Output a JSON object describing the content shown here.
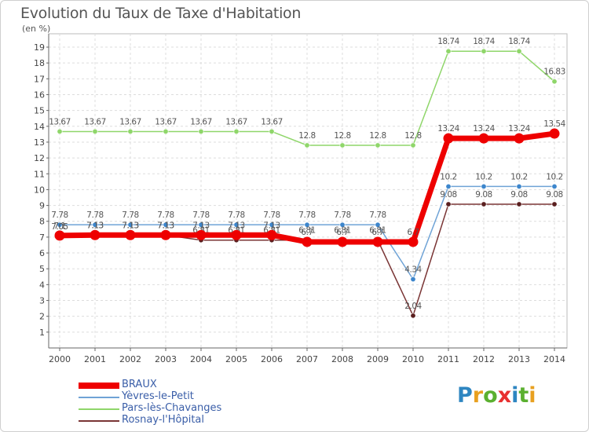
{
  "header": {
    "title": "Evolution du Taux de Taxe d'Habitation",
    "unit": "(en %)"
  },
  "logo": {
    "letters": [
      "P",
      "r",
      "o",
      "x",
      "i",
      "t",
      "i"
    ],
    "colors": [
      "#2e86c1",
      "#e8a020",
      "#5bb030",
      "#e83030",
      "#2e86c1",
      "#5bb030",
      "#e8a020"
    ]
  },
  "chart_data": {
    "type": "line",
    "title": "Evolution du Taux de Taxe d'Habitation",
    "ylabel": "(en %)",
    "xlabel": "",
    "x": [
      "2000",
      "2001",
      "2002",
      "2003",
      "2004",
      "2005",
      "2006",
      "2007",
      "2008",
      "2009",
      "2010",
      "2011",
      "2012",
      "2013",
      "2014"
    ],
    "ylim": [
      0,
      19
    ],
    "yticks": [
      1,
      2,
      3,
      4,
      5,
      6,
      7,
      8,
      9,
      10,
      11,
      12,
      13,
      14,
      15,
      16,
      17,
      18,
      19
    ],
    "grid": true,
    "legend_position": "bottom-left",
    "series": [
      {
        "name": "Pars-lès-Chavanges",
        "color": "#8fd66a",
        "marker": "#8fd66a",
        "width": 1.5,
        "values": [
          13.67,
          13.67,
          13.67,
          13.67,
          13.67,
          13.67,
          13.67,
          12.8,
          12.8,
          12.8,
          12.8,
          18.74,
          18.74,
          18.74,
          16.83
        ],
        "labels": [
          "13.67",
          "13.67",
          "13.67",
          "13.67",
          "13.67",
          "13.67",
          "13.67",
          "12.8",
          "12.8",
          "12.8",
          "12.8",
          "18.74",
          "18.74",
          "18.74",
          "16.83"
        ]
      },
      {
        "name": "Yèvres-le-Petit",
        "color": "#6fa3d6",
        "marker": "#3d86cc",
        "width": 1.5,
        "values": [
          7.78,
          7.78,
          7.78,
          7.78,
          7.78,
          7.78,
          7.78,
          7.78,
          7.78,
          7.78,
          4.34,
          10.2,
          10.2,
          10.2,
          10.2
        ],
        "labels": [
          "7.78",
          "7.78",
          "7.78",
          "7.78",
          "7.78",
          "7.78",
          "7.78",
          "7.78",
          "7.78",
          "7.78",
          "4.34",
          "10.2",
          "10.2",
          "10.2",
          "10.2"
        ]
      },
      {
        "name": "Rosnay-l'Hôpital",
        "color": "#7a3535",
        "marker": "#5a1f1f",
        "width": 1.5,
        "values": [
          7.05,
          7.13,
          7.13,
          7.13,
          6.81,
          6.81,
          6.81,
          6.81,
          6.81,
          6.81,
          2.04,
          9.08,
          9.08,
          9.08,
          9.08
        ],
        "labels": [
          "7.05",
          "7.13",
          "7.13",
          "7.13",
          "6.81",
          "6.81",
          "6.81",
          "6.81",
          "6.81",
          "6.81",
          "2.04",
          "9.08",
          "9.08",
          "9.08",
          "9.08"
        ]
      },
      {
        "name": "BRAUX",
        "color": "#ee0000",
        "marker": "#ee0000",
        "width": 7,
        "values": [
          7.1,
          7.13,
          7.13,
          7.13,
          7.13,
          7.13,
          7.13,
          6.7,
          6.7,
          6.7,
          6.7,
          13.24,
          13.24,
          13.24,
          13.54
        ],
        "labels": [
          "7.1",
          "7.13",
          "7.13",
          "7.13",
          "7.13",
          "7.13",
          "7.13",
          "6.7",
          "6.7",
          "6.7",
          "6.7",
          "13.24",
          "13.24",
          "13.24",
          "13.54"
        ]
      }
    ],
    "legend_order": [
      "BRAUX",
      "Yèvres-le-Petit",
      "Pars-lès-Chavanges",
      "Rosnay-l'Hôpital"
    ]
  }
}
